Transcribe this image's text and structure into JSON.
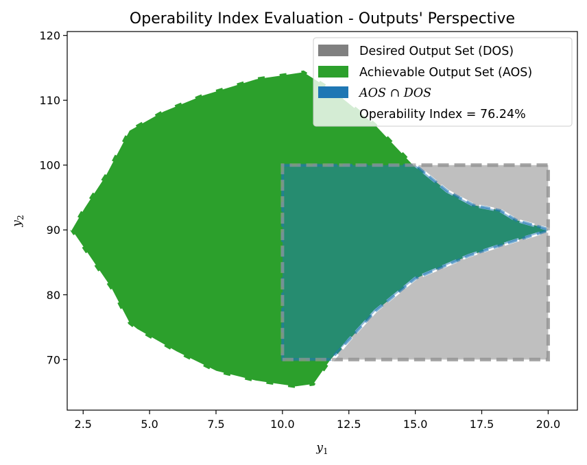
{
  "chart_data": {
    "type": "area",
    "title": "Operability Index Evaluation - Outputs' Perspective",
    "xlabel": "y1",
    "ylabel": "y2",
    "xlim": [
      1.9,
      21.1
    ],
    "ylim": [
      62.2,
      120.6
    ],
    "xticks": [
      "2.5",
      "5.0",
      "7.5",
      "10.0",
      "12.5",
      "15.0",
      "17.5",
      "20.0"
    ],
    "xtick_values": [
      2.5,
      5.0,
      7.5,
      10.0,
      12.5,
      15.0,
      17.5,
      20.0
    ],
    "yticks": [
      "70",
      "80",
      "90",
      "100",
      "110",
      "120"
    ],
    "ytick_values": [
      70,
      80,
      90,
      100,
      110,
      120
    ],
    "grid": false,
    "legend_position": "top-right",
    "series": [
      {
        "name": "Desired Output Set (DOS)",
        "color": "#808080",
        "fill_alpha": 0.5,
        "points": [
          [
            10,
            70
          ],
          [
            20,
            70
          ],
          [
            20,
            100
          ],
          [
            10,
            100
          ]
        ]
      },
      {
        "name": "Achievable Output Set (AOS)",
        "color": "#2ca02c",
        "points": [
          [
            2.0,
            90.0
          ],
          [
            2.5,
            93.5
          ],
          [
            3.3,
            98.5
          ],
          [
            4.2,
            105.5
          ],
          [
            5.5,
            108.5
          ],
          [
            7.0,
            111.0
          ],
          [
            9.0,
            113.5
          ],
          [
            10.8,
            114.6
          ],
          [
            12.0,
            111.5
          ],
          [
            13.5,
            106.5
          ],
          [
            15.0,
            100.0
          ],
          [
            16.2,
            96.0
          ],
          [
            17.2,
            93.8
          ],
          [
            18.2,
            93.0
          ],
          [
            18.8,
            91.5
          ],
          [
            20.1,
            90.0
          ],
          [
            18.5,
            88.0
          ],
          [
            17.0,
            86.0
          ],
          [
            15.0,
            82.5
          ],
          [
            13.5,
            77.5
          ],
          [
            12.5,
            73.0
          ],
          [
            11.8,
            69.5
          ],
          [
            11.2,
            66.0
          ],
          [
            10.5,
            65.6
          ],
          [
            9.0,
            66.5
          ],
          [
            7.5,
            68.0
          ],
          [
            6.0,
            71.0
          ],
          [
            4.5,
            74.5
          ],
          [
            4.2,
            75.5
          ],
          [
            3.5,
            81.0
          ],
          [
            2.5,
            87.0
          ]
        ]
      },
      {
        "name": "AOS ∩ DOS",
        "color": "#1f77b4",
        "fill_alpha": 0.5,
        "points": [
          [
            10.0,
            100.0
          ],
          [
            15.0,
            100.0
          ],
          [
            16.2,
            96.0
          ],
          [
            17.2,
            93.8
          ],
          [
            18.2,
            93.0
          ],
          [
            18.8,
            91.5
          ],
          [
            20.0,
            90.1
          ],
          [
            20.0,
            89.9
          ],
          [
            18.5,
            88.0
          ],
          [
            17.0,
            86.0
          ],
          [
            15.0,
            82.5
          ],
          [
            13.5,
            77.5
          ],
          [
            12.5,
            73.0
          ],
          [
            11.8,
            70.0
          ],
          [
            10.0,
            70.0
          ]
        ]
      }
    ],
    "annotations": [
      "Operability Index = 76.24%"
    ],
    "operability_index_percent": 76.24
  },
  "legend": {
    "dos_label": "Desired Output Set (DOS)",
    "aos_label": "Achievable Output Set (AOS)",
    "intersection_label": "AOS ∩ DOS",
    "oi_label": "Operability Index = 76.24%"
  }
}
